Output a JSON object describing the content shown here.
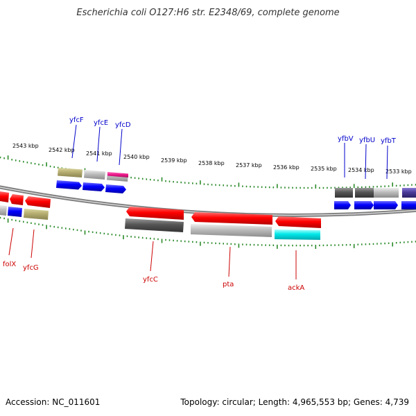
{
  "title": "Escherichia coli O127:H6 str. E2348/69, complete genome",
  "footer": {
    "accession": "Accession: NC_011601",
    "topology": "Topology: circular; Length: 4,965,553 bp; Genes: 4,739"
  },
  "ticks": [
    "2543 kbp",
    "2542 kbp",
    "2541 kbp",
    "2540 kbp",
    "2539 kbp",
    "2538 kbp",
    "2537 kbp",
    "2536 kbp",
    "2535 kbp",
    "2534 kbp",
    "2533 kbp"
  ],
  "genes_top": [
    "yfcF",
    "yfcE",
    "yfcD",
    "yfbV",
    "yfbU",
    "yfbT"
  ],
  "genes_bottom": [
    "folX",
    "yfcG",
    "yfcC",
    "pta",
    "ackA"
  ],
  "colors": {
    "top_label": "#0000cc",
    "bottom_label": "#cc0000",
    "tick": "#2a8a2a",
    "backbone": "#888888"
  }
}
